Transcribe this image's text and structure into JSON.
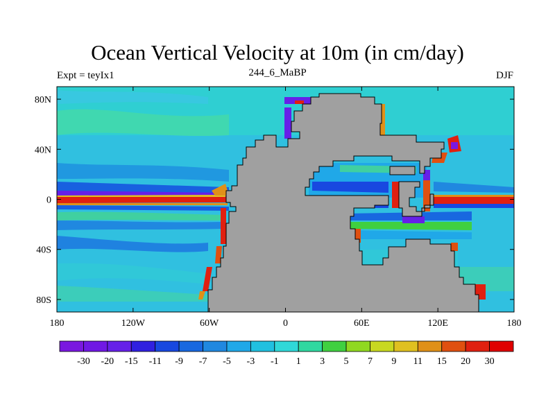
{
  "title": "Ocean Vertical Velocity at 10m (in cm/day)",
  "left_string": "Expt = teyIx1",
  "center_string": "244_6_MaBP",
  "right_string": "DJF",
  "map": {
    "projection": "cylindrical equidistant",
    "lon_range": [
      -180,
      180
    ],
    "lat_range": [
      -90,
      90
    ],
    "land_color": "#a0a0a0",
    "lat_ticks": [
      {
        "value": 80,
        "label": "80N"
      },
      {
        "value": 40,
        "label": "40N"
      },
      {
        "value": 0,
        "label": "0"
      },
      {
        "value": -40,
        "label": "40S"
      },
      {
        "value": -80,
        "label": "80S"
      }
    ],
    "lon_ticks": [
      {
        "value": -180,
        "label": "180"
      },
      {
        "value": -120,
        "label": "120W"
      },
      {
        "value": -60,
        "label": "60W"
      },
      {
        "value": 0,
        "label": "0"
      },
      {
        "value": 60,
        "label": "60E"
      },
      {
        "value": 120,
        "label": "120E"
      },
      {
        "value": 180,
        "label": "180"
      }
    ]
  },
  "colorbar": {
    "labels": [
      "-30",
      "-20",
      "-15",
      "-11",
      "-9",
      "-7",
      "-5",
      "-3",
      "-1",
      "1",
      "3",
      "5",
      "7",
      "9",
      "11",
      "15",
      "20",
      "30"
    ],
    "colors": [
      "#7a18e0",
      "#7018e4",
      "#6620e8",
      "#3020e0",
      "#1848e0",
      "#1868e0",
      "#2088e0",
      "#20a8e8",
      "#20c0e0",
      "#30d8d8",
      "#30d8a0",
      "#40d040",
      "#90d820",
      "#c8d820",
      "#e0c020",
      "#e09018",
      "#e05010",
      "#e02010",
      "#e00000"
    ]
  }
}
